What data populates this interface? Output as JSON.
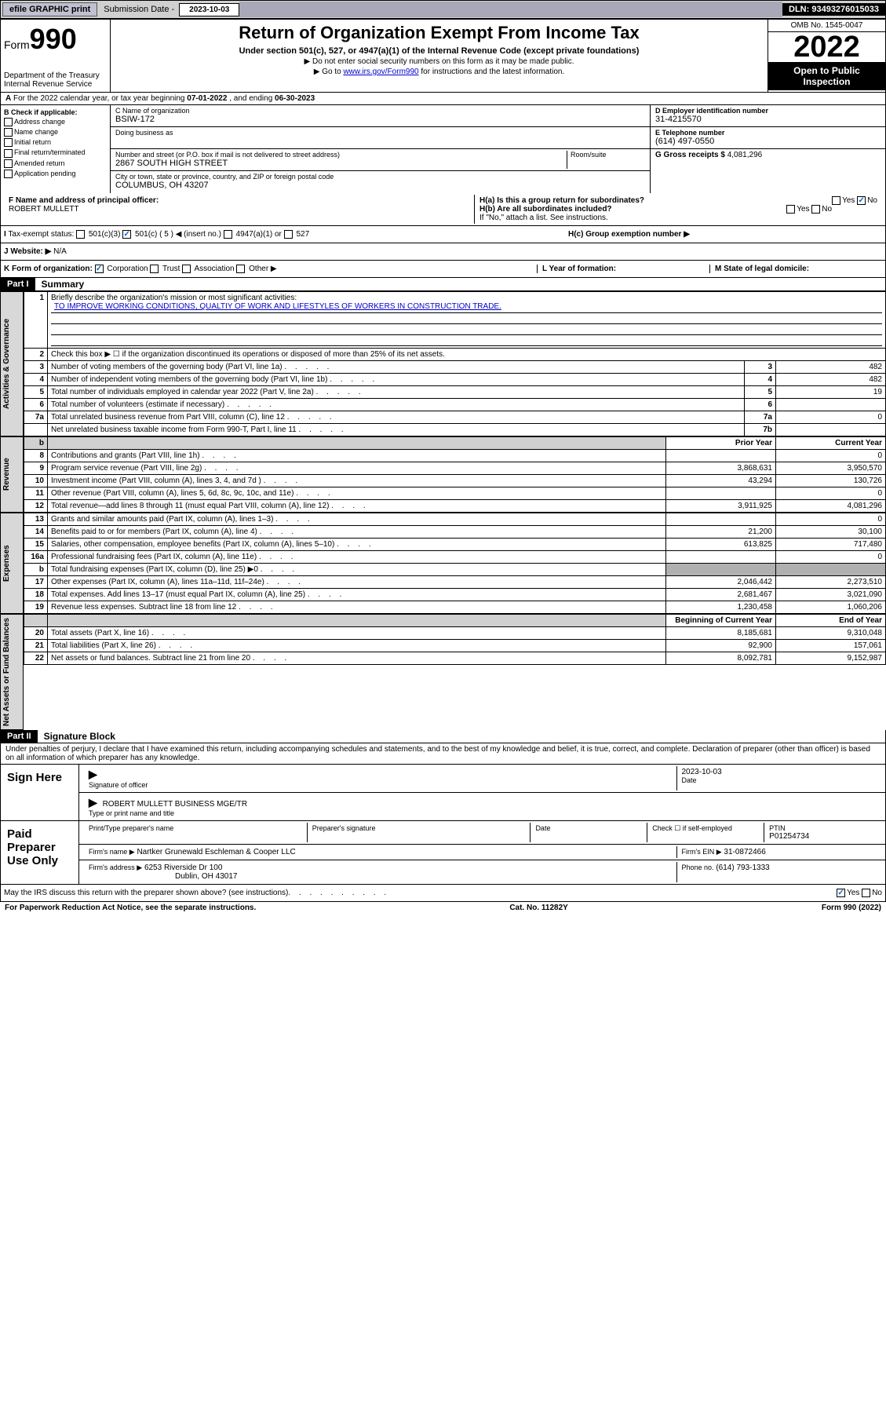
{
  "topbar": {
    "efile_btn": "efile GRAPHIC print",
    "sub_label": "Submission Date - ",
    "sub_date": "2023-10-03",
    "dln": "DLN: 93493276015033"
  },
  "header": {
    "form_prefix": "Form",
    "form_number": "990",
    "dept": "Department of the Treasury\nInternal Revenue Service",
    "title": "Return of Organization Exempt From Income Tax",
    "subtitle": "Under section 501(c), 527, or 4947(a)(1) of the Internal Revenue Code (except private foundations)",
    "instr1": "▶ Do not enter social security numbers on this form as it may be made public.",
    "instr2_pre": "▶ Go to ",
    "instr2_link": "www.irs.gov/Form990",
    "instr2_post": " for instructions and the latest information.",
    "omb": "OMB No. 1545-0047",
    "year": "2022",
    "open": "Open to Public Inspection"
  },
  "row_a": {
    "text": "For the 2022 calendar year, or tax year beginning ",
    "begin": "07-01-2022",
    "mid": " , and ending ",
    "end": "06-30-2023"
  },
  "section_b": {
    "label": "B Check if applicable:",
    "addr_change": "Address change",
    "name_change": "Name change",
    "initial": "Initial return",
    "final": "Final return/terminated",
    "amended": "Amended return",
    "app_pending": "Application pending"
  },
  "section_c": {
    "name_label": "C Name of organization",
    "name": "BSIW-172",
    "dba_label": "Doing business as",
    "dba": "",
    "street_label": "Number and street (or P.O. box if mail is not delivered to street address)",
    "street": "2867 SOUTH HIGH STREET",
    "room_label": "Room/suite",
    "room": "",
    "city_label": "City or town, state or province, country, and ZIP or foreign postal code",
    "city": "COLUMBUS, OH  43207"
  },
  "section_d": {
    "label": "D Employer identification number",
    "value": "31-4215570"
  },
  "section_e": {
    "label": "E Telephone number",
    "value": "(614) 497-0550"
  },
  "section_g": {
    "label": "G Gross receipts $",
    "value": "4,081,296"
  },
  "section_f": {
    "label": "F Name and address of principal officer:",
    "value": "ROBERT MULLETT"
  },
  "section_h": {
    "ha_label": "H(a)  Is this a group return for subordinates?",
    "hb_label": "H(b)  Are all subordinates included?",
    "hb_note": "If \"No,\" attach a list. See instructions.",
    "hc_label": "H(c)  Group exemption number ▶",
    "yes": "Yes",
    "no": "No"
  },
  "section_i": {
    "label": "Tax-exempt status:",
    "c3": "501(c)(3)",
    "c": "501(c) ( 5 ) ◀ (insert no.)",
    "a1": "4947(a)(1) or",
    "s527": "527"
  },
  "section_j": {
    "label": "J   Website: ▶",
    "value": "N/A"
  },
  "section_k": {
    "label": "K Form of organization:",
    "corp": "Corporation",
    "trust": "Trust",
    "assoc": "Association",
    "other": "Other ▶"
  },
  "section_l": {
    "label": "L Year of formation:",
    "value": ""
  },
  "section_m": {
    "label": "M State of legal domicile:",
    "value": ""
  },
  "part1": {
    "header": "Part I",
    "title": "Summary",
    "line1_label": "Briefly describe the organization's mission or most significant activities:",
    "mission": "TO IMPROVE WORKING CONDITIONS, QUALTIY OF WORK AND LIFESTYLES OF WORKERS IN CONSTRUCTION TRADE.",
    "line2": "Check this box ▶ ☐  if the organization discontinued its operations or disposed of more than 25% of its net assets.",
    "sidebar_gov": "Activities & Governance",
    "sidebar_rev": "Revenue",
    "sidebar_exp": "Expenses",
    "sidebar_net": "Net Assets or Fund Balances",
    "col_prior": "Prior Year",
    "col_current": "Current Year",
    "col_boy": "Beginning of Current Year",
    "col_eoy": "End of Year",
    "rows_gov": [
      {
        "n": "3",
        "t": "Number of voting members of the governing body (Part VI, line 1a)",
        "box": "3",
        "v": "482"
      },
      {
        "n": "4",
        "t": "Number of independent voting members of the governing body (Part VI, line 1b)",
        "box": "4",
        "v": "482"
      },
      {
        "n": "5",
        "t": "Total number of individuals employed in calendar year 2022 (Part V, line 2a)",
        "box": "5",
        "v": "19"
      },
      {
        "n": "6",
        "t": "Total number of volunteers (estimate if necessary)",
        "box": "6",
        "v": ""
      },
      {
        "n": "7a",
        "t": "Total unrelated business revenue from Part VIII, column (C), line 12",
        "box": "7a",
        "v": "0"
      },
      {
        "n": "",
        "t": "Net unrelated business taxable income from Form 990-T, Part I, line 11",
        "box": "7b",
        "v": ""
      }
    ],
    "rows_rev": [
      {
        "n": "8",
        "t": "Contributions and grants (Part VIII, line 1h)",
        "p": "",
        "c": "0"
      },
      {
        "n": "9",
        "t": "Program service revenue (Part VIII, line 2g)",
        "p": "3,868,631",
        "c": "3,950,570"
      },
      {
        "n": "10",
        "t": "Investment income (Part VIII, column (A), lines 3, 4, and 7d )",
        "p": "43,294",
        "c": "130,726"
      },
      {
        "n": "11",
        "t": "Other revenue (Part VIII, column (A), lines 5, 6d, 8c, 9c, 10c, and 11e)",
        "p": "",
        "c": "0"
      },
      {
        "n": "12",
        "t": "Total revenue—add lines 8 through 11 (must equal Part VIII, column (A), line 12)",
        "p": "3,911,925",
        "c": "4,081,296"
      }
    ],
    "rows_exp": [
      {
        "n": "13",
        "t": "Grants and similar amounts paid (Part IX, column (A), lines 1–3)",
        "p": "",
        "c": "0"
      },
      {
        "n": "14",
        "t": "Benefits paid to or for members (Part IX, column (A), line 4)",
        "p": "21,200",
        "c": "30,100"
      },
      {
        "n": "15",
        "t": "Salaries, other compensation, employee benefits (Part IX, column (A), lines 5–10)",
        "p": "613,825",
        "c": "717,480"
      },
      {
        "n": "16a",
        "t": "Professional fundraising fees (Part IX, column (A), line 11e)",
        "p": "",
        "c": "0"
      },
      {
        "n": "b",
        "t": "Total fundraising expenses (Part IX, column (D), line 25) ▶0",
        "p": "SHADED",
        "c": "SHADED"
      },
      {
        "n": "17",
        "t": "Other expenses (Part IX, column (A), lines 11a–11d, 11f–24e)",
        "p": "2,046,442",
        "c": "2,273,510"
      },
      {
        "n": "18",
        "t": "Total expenses. Add lines 13–17 (must equal Part IX, column (A), line 25)",
        "p": "2,681,467",
        "c": "3,021,090"
      },
      {
        "n": "19",
        "t": "Revenue less expenses. Subtract line 18 from line 12",
        "p": "1,230,458",
        "c": "1,060,206"
      }
    ],
    "rows_net": [
      {
        "n": "20",
        "t": "Total assets (Part X, line 16)",
        "p": "8,185,681",
        "c": "9,310,048"
      },
      {
        "n": "21",
        "t": "Total liabilities (Part X, line 26)",
        "p": "92,900",
        "c": "157,061"
      },
      {
        "n": "22",
        "t": "Net assets or fund balances. Subtract line 21 from line 20",
        "p": "8,092,781",
        "c": "9,152,987"
      }
    ]
  },
  "part2": {
    "header": "Part II",
    "title": "Signature Block",
    "decl": "Under penalties of perjury, I declare that I have examined this return, including accompanying schedules and statements, and to the best of my knowledge and belief, it is true, correct, and complete. Declaration of preparer (other than officer) is based on all information of which preparer has any knowledge."
  },
  "sign": {
    "label": "Sign Here",
    "sig_officer": "Signature of officer",
    "date_label": "Date",
    "date": "2023-10-03",
    "name": "ROBERT MULLETT BUSINESS MGE/TR",
    "name_label": "Type or print name and title"
  },
  "paid": {
    "label": "Paid Preparer Use Only",
    "prep_name_label": "Print/Type preparer's name",
    "prep_sig_label": "Preparer's signature",
    "date_label": "Date",
    "check_label": "Check ☐ if self-employed",
    "ptin_label": "PTIN",
    "ptin": "P01254734",
    "firm_name_label": "Firm's name     ▶",
    "firm_name": "Nartker Grunewald Eschleman & Cooper LLC",
    "firm_ein_label": "Firm's EIN ▶",
    "firm_ein": "31-0872466",
    "firm_addr_label": "Firm's address ▶",
    "firm_addr": "6253 Riverside Dr 100",
    "firm_addr2": "Dublin, OH  43017",
    "phone_label": "Phone no.",
    "phone": "(614) 793-1333"
  },
  "bottom": {
    "discuss": "May the IRS discuss this return with the preparer shown above? (see instructions)",
    "yes": "Yes",
    "no": "No",
    "paperwork": "For Paperwork Reduction Act Notice, see the separate instructions.",
    "cat": "Cat. No. 11282Y",
    "form": "Form 990 (2022)"
  }
}
